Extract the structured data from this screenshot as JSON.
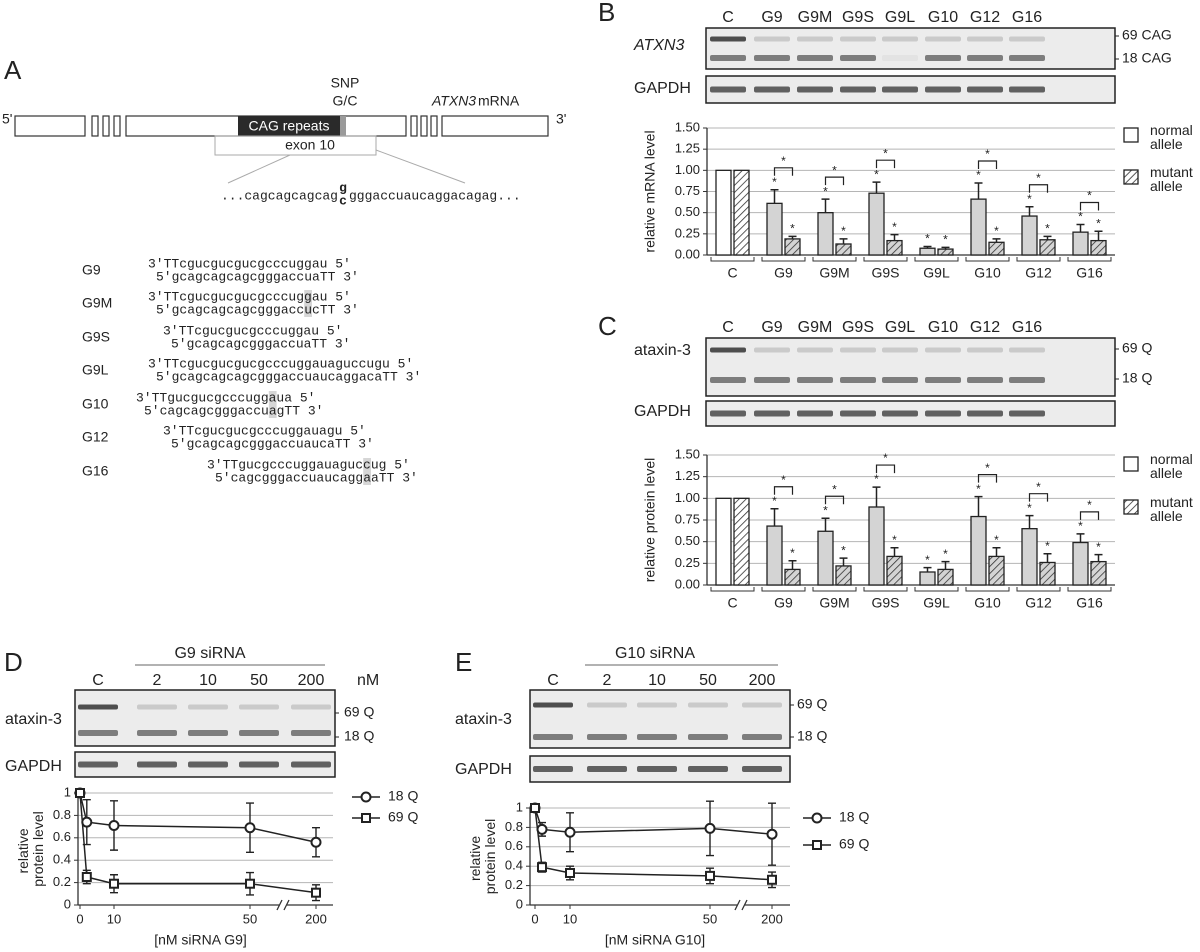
{
  "panels": {
    "a": "A",
    "b": "B",
    "c": "C",
    "d": "D",
    "e": "E"
  },
  "panel_a": {
    "five_prime": "5'",
    "three_prime": "3'",
    "snp": "SNP",
    "snp_alleles": "G/C",
    "mrna_gene": "ATXN3",
    "mrna_word": "mRNA",
    "cag": "CAG repeats",
    "exon": "exon 10",
    "sequence": {
      "left": "...cagcagcagcag",
      "snp_top": "g",
      "snp_bottom": "c",
      "right": "gggaccuaucaggacagag..."
    },
    "sirnas": [
      {
        "name": "G9",
        "top": "3'TTcgucgucgucgcccuggau 5'",
        "bottom": "5'gcagcagcagcgggaccuaTT 3'"
      },
      {
        "name": "G9M",
        "top": "3'TTcgucgucgucgcccuggau 5'",
        "bottom": "5'gcagcagcagcgggaccucTT 3'"
      },
      {
        "name": "G9S",
        "top": "3'TTcgucgucgcccuggau 5'",
        "bottom": "5'gcagcagcgggaccuaTT 3'"
      },
      {
        "name": "G9L",
        "top": "3'TTcgucgucgucgcccuggauaguccugu 5'",
        "bottom": "5'gcagcagcagcgggaccuaucaggacaTT 3'"
      },
      {
        "name": "G10",
        "top": "3'TTgucgucgcccuggaua 5'",
        "bottom": "5'cagcagcgggaccuagTT 3'"
      },
      {
        "name": "G12",
        "top": "3'TTcgucgucgcccuggauagu 5'",
        "bottom": "5'gcagcagcgggaccuaucaTT 3'"
      },
      {
        "name": "G16",
        "top": "3'TTgucgcccuggauaguccug 5'",
        "bottom": "5'cagcgggaccuaucaggaaTT 3'"
      }
    ]
  },
  "blots": [
    {
      "columns": [
        "C",
        "G9",
        "G9M",
        "G9S",
        "G9L",
        "G10",
        "G12",
        "G16"
      ],
      "target": "ATXN3",
      "loading": "GAPDH",
      "bands": [
        "69 CAG",
        "18 CAG"
      ]
    },
    {
      "columns": [
        "C",
        "G9",
        "G9M",
        "G9S",
        "G9L",
        "G10",
        "G12",
        "G16"
      ],
      "target": "ataxin-3",
      "loading": "GAPDH",
      "bands": [
        "69 Q",
        "18 Q"
      ]
    },
    {
      "header": "G9 siRNA",
      "columns": [
        "C",
        "2",
        "10",
        "50",
        "200"
      ],
      "unit": "nM",
      "target": "ataxin-3",
      "loading": "GAPDH",
      "bands": [
        "69 Q",
        "18 Q"
      ]
    },
    {
      "header": "G10 siRNA",
      "columns": [
        "C",
        "2",
        "10",
        "50",
        "200"
      ],
      "target": "ataxin-3",
      "loading": "GAPDH",
      "bands": [
        "69 Q",
        "18 Q"
      ]
    }
  ],
  "chart_data": [
    {
      "type": "bar",
      "ylabel": "relative mRNA level",
      "categories": [
        "C",
        "G9",
        "G9M",
        "G9S",
        "G9L",
        "G10",
        "G12",
        "G16"
      ],
      "series": [
        {
          "name": "normal allele",
          "color": "#ffffff",
          "values": [
            1.0,
            0.61,
            0.5,
            0.73,
            0.08,
            0.66,
            0.46,
            0.27
          ],
          "errors": [
            0,
            0.16,
            0.16,
            0.13,
            0.02,
            0.19,
            0.11,
            0.09
          ]
        },
        {
          "name": "mutant allele",
          "color": "#ffffff",
          "hatch": true,
          "values": [
            1.0,
            0.19,
            0.13,
            0.17,
            0.07,
            0.15,
            0.18,
            0.17
          ],
          "errors": [
            0,
            0.03,
            0.06,
            0.07,
            0.02,
            0.04,
            0.04,
            0.11
          ]
        }
      ],
      "bar_fill": "#d4d4d4",
      "significance_marker": "*",
      "bracketed": [
        false,
        true,
        true,
        true,
        false,
        true,
        true,
        true
      ],
      "ylim": [
        0,
        1.5
      ],
      "yticks": [
        {
          "value": 0,
          "label": "0.00"
        },
        0.25,
        {
          "value": 0.5,
          "label": "0.50"
        },
        0.75,
        {
          "value": 1,
          "label": "1.00"
        },
        1.25,
        {
          "value": 1.5,
          "label": "1.50"
        }
      ],
      "grid": true,
      "legend": "right"
    },
    {
      "type": "bar",
      "ylabel": "relative protein level",
      "categories": [
        "C",
        "G9",
        "G9M",
        "G9S",
        "G9L",
        "G10",
        "G12",
        "G16"
      ],
      "series": [
        {
          "name": "normal allele",
          "color": "#ffffff",
          "values": [
            1.0,
            0.68,
            0.62,
            0.9,
            0.15,
            0.79,
            0.65,
            0.49
          ],
          "errors": [
            0,
            0.2,
            0.15,
            0.23,
            0.05,
            0.23,
            0.15,
            0.1
          ]
        },
        {
          "name": "mutant allele",
          "color": "#ffffff",
          "hatch": true,
          "values": [
            1.0,
            0.18,
            0.22,
            0.33,
            0.18,
            0.33,
            0.26,
            0.27
          ],
          "errors": [
            0,
            0.1,
            0.09,
            0.1,
            0.09,
            0.1,
            0.1,
            0.08
          ]
        }
      ],
      "bar_fill": "#d4d4d4",
      "significance_marker": "*",
      "bracketed": [
        false,
        true,
        true,
        true,
        false,
        true,
        true,
        true
      ],
      "ylim": [
        0,
        1.5
      ],
      "yticks": [
        {
          "value": 0,
          "label": "0.00"
        },
        0.25,
        {
          "value": 0.5,
          "label": "0.50"
        },
        0.75,
        {
          "value": 1,
          "label": "1.00"
        },
        1.25,
        {
          "value": 1.5,
          "label": "1.50"
        }
      ],
      "grid": true,
      "legend": "right"
    },
    {
      "type": "line",
      "xlabel": "[nM siRNA G9]",
      "ylabel": "relative protein level",
      "x": [
        0,
        2,
        10,
        50,
        200
      ],
      "series": [
        {
          "name": "18 Q",
          "marker": "circle",
          "color": "#222222",
          "values": [
            1.0,
            0.74,
            0.71,
            0.69,
            0.56
          ],
          "errors": [
            0,
            0.2,
            0.22,
            0.22,
            0.13
          ]
        },
        {
          "name": "69 Q",
          "marker": "square",
          "color": "#222222",
          "values": [
            1.0,
            0.25,
            0.19,
            0.19,
            0.11
          ],
          "errors": [
            0,
            0.06,
            0.08,
            0.1,
            0.07
          ]
        }
      ],
      "xlim": [
        0,
        200
      ],
      "xticks": [
        0,
        10,
        50,
        200
      ],
      "x_break": true,
      "ylim": [
        0,
        1
      ],
      "yticks": [
        0,
        0.2,
        0.4,
        0.6,
        0.8,
        1
      ],
      "grid": true,
      "legend": "right"
    },
    {
      "type": "line",
      "xlabel": "[nM siRNA G10]",
      "ylabel": "relative protein level",
      "x": [
        0,
        2,
        10,
        50,
        200
      ],
      "series": [
        {
          "name": "18 Q",
          "marker": "circle",
          "color": "#222222",
          "values": [
            1.0,
            0.78,
            0.75,
            0.79,
            0.73
          ],
          "errors": [
            0,
            0.07,
            0.2,
            0.28,
            0.32
          ]
        },
        {
          "name": "69 Q",
          "marker": "square",
          "color": "#222222",
          "values": [
            1.0,
            0.39,
            0.33,
            0.3,
            0.26
          ],
          "errors": [
            0,
            0.05,
            0.07,
            0.08,
            0.08
          ]
        }
      ],
      "xlim": [
        0,
        200
      ],
      "xticks": [
        0,
        10,
        50,
        200
      ],
      "x_break": true,
      "ylim": [
        0,
        1
      ],
      "yticks": [
        0,
        0.2,
        0.4,
        0.6,
        0.8,
        1
      ],
      "grid": true,
      "legend": "right"
    }
  ]
}
